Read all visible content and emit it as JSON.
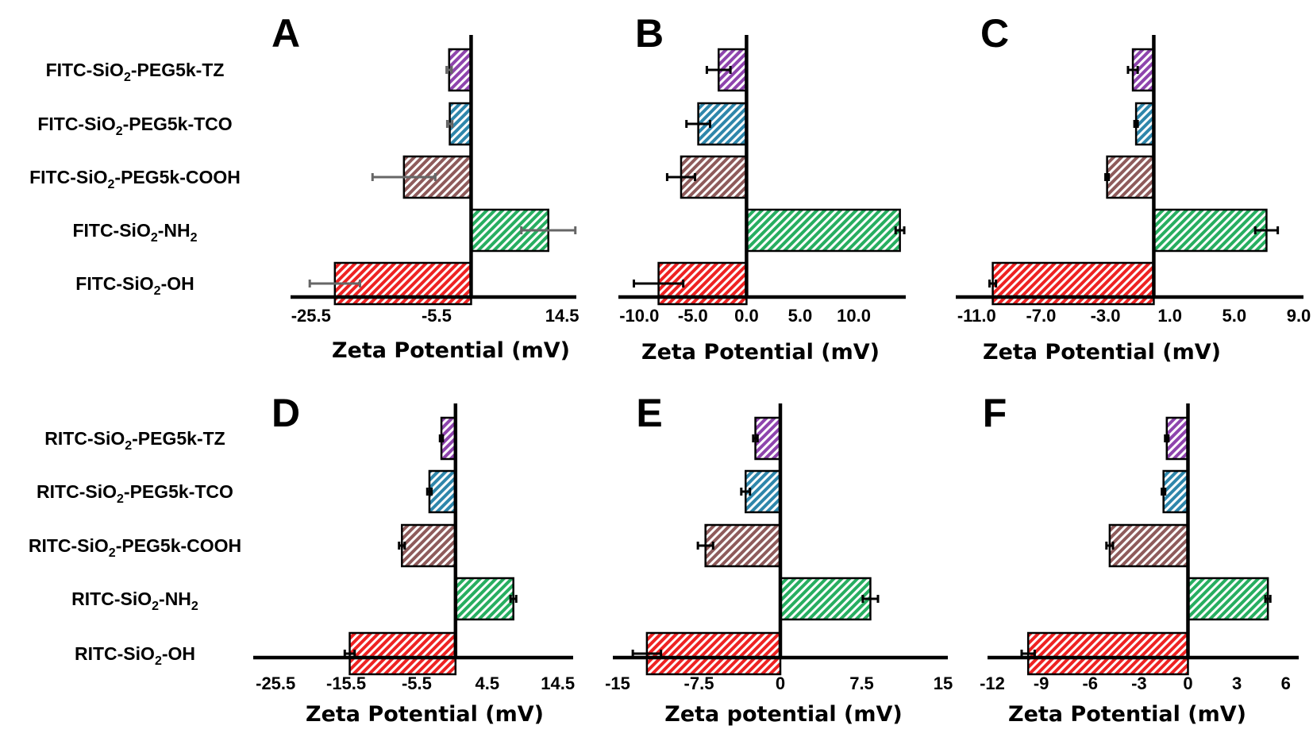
{
  "colors": {
    "TZ": "#8e44ad",
    "TCO": "#2e86ab",
    "COOH": "#8e5b5b",
    "NH2": "#27ae60",
    "OH": "#ee2222",
    "err_gray": "#666666",
    "err_black": "#000000"
  },
  "series_keys": [
    "TZ",
    "TCO",
    "COOH",
    "NH2",
    "OH"
  ],
  "label_groups": [
    {
      "name": "FITC",
      "labels": [
        {
          "pre": "FITC-SiO",
          "sub": "2",
          "post": "-PEG5k-TZ"
        },
        {
          "pre": "FITC-SiO",
          "sub": "2",
          "post": "-PEG5k-TCO"
        },
        {
          "pre": "FITC-SiO",
          "sub": "2",
          "post": "-PEG5k-COOH"
        },
        {
          "pre": "FITC-SiO",
          "sub": "2",
          "post": "-NH",
          "sub2": "2"
        },
        {
          "pre": "FITC-SiO",
          "sub": "2",
          "post": "-OH"
        }
      ]
    },
    {
      "name": "RITC",
      "labels": [
        {
          "pre": "RITC-SiO",
          "sub": "2",
          "post": "-PEG5k-TZ"
        },
        {
          "pre": "RITC-SiO",
          "sub": "2",
          "post": "-PEG5k-TCO"
        },
        {
          "pre": "RITC-SiO",
          "sub": "2",
          "post": "-PEG5k-COOH"
        },
        {
          "pre": "RITC-SiO",
          "sub": "2",
          "post": "-NH",
          "sub2": "2"
        },
        {
          "pre": "RITC-SiO",
          "sub": "2",
          "post": "-OH"
        }
      ]
    }
  ],
  "chart_data": [
    {
      "panel": "A",
      "type": "bar",
      "orientation": "horizontal",
      "xlabel": "Zeta Potential (mV)",
      "xlim": [
        -28,
        16
      ],
      "ticks": [
        -25.5,
        -5.5,
        14.5
      ],
      "tick_labels": [
        "-25.5",
        "-5.5",
        "14.5"
      ],
      "categories": [
        "FITC-SiO2-PEG5k-TZ",
        "FITC-SiO2-PEG5k-TCO",
        "FITC-SiO2-PEG5k-COOH",
        "FITC-SiO2-NH2",
        "FITC-SiO2-OH"
      ],
      "values": [
        -3.5,
        -3.4,
        -10.7,
        12.3,
        -21.7
      ],
      "errors": [
        0.4,
        0.4,
        5.0,
        4.3,
        4.0
      ],
      "error_color": "gray"
    },
    {
      "panel": "B",
      "type": "bar",
      "orientation": "horizontal",
      "xlabel": "Zeta Potential (mV)",
      "xlim": [
        -11.5,
        14.4
      ],
      "ticks": [
        -10,
        -5,
        0,
        5,
        10
      ],
      "tick_labels": [
        "-10.0",
        "-5.0",
        "0.0",
        "5.0",
        "10.0"
      ],
      "categories": [
        "FITC-SiO2-PEG5k-TZ",
        "FITC-SiO2-PEG5k-TCO",
        "FITC-SiO2-PEG5k-COOH",
        "FITC-SiO2-NH2",
        "FITC-SiO2-OH"
      ],
      "values": [
        -2.6,
        -4.5,
        -6.1,
        14.3,
        -8.2
      ],
      "errors": [
        1.1,
        1.1,
        1.3,
        0.4,
        2.3
      ],
      "error_color": "black"
    },
    {
      "panel": "C",
      "type": "bar",
      "orientation": "horizontal",
      "xlabel": "Zeta Potential (mV)",
      "xlim": [
        -12,
        9
      ],
      "ticks": [
        -11,
        -7,
        -3,
        1,
        5,
        9
      ],
      "tick_labels": [
        "-11.0",
        "-7.0",
        "-3.0",
        "1.0",
        "5.0",
        "9.0"
      ],
      "categories": [
        "FITC-SiO2-PEG5k-TZ",
        "FITC-SiO2-PEG5k-TCO",
        "FITC-SiO2-PEG5k-COOH",
        "FITC-SiO2-NH2",
        "FITC-SiO2-OH"
      ],
      "values": [
        -1.3,
        -1.1,
        -2.9,
        7.0,
        -10.0
      ],
      "errors": [
        0.3,
        0.1,
        0.1,
        0.7,
        0.2
      ],
      "error_color": "black"
    },
    {
      "panel": "D",
      "type": "bar",
      "orientation": "horizontal",
      "xlabel": "Zeta Potential (mV)",
      "xlim": [
        -28,
        16
      ],
      "ticks": [
        -25.5,
        -15.5,
        -5.5,
        4.5,
        14.5
      ],
      "tick_labels": [
        "-25.5",
        "-15.5",
        "-5.5",
        "4.5",
        "14.5"
      ],
      "categories": [
        "RITC-SiO2-PEG5k-TZ",
        "RITC-SiO2-PEG5k-TCO",
        "RITC-SiO2-PEG5k-COOH",
        "RITC-SiO2-NH2",
        "RITC-SiO2-OH"
      ],
      "values": [
        -2.0,
        -3.7,
        -7.6,
        8.2,
        -15.0
      ],
      "errors": [
        0.2,
        0.3,
        0.4,
        0.4,
        0.7
      ],
      "error_color": "black"
    },
    {
      "panel": "E",
      "type": "bar",
      "orientation": "horizontal",
      "xlabel": "Zeta potential (mV)",
      "xlim": [
        -15,
        15
      ],
      "ticks": [
        -15,
        -7.5,
        0,
        7.5,
        15
      ],
      "tick_labels": [
        "-15",
        "-7.5",
        "0",
        "7.5",
        "15"
      ],
      "categories": [
        "RITC-SiO2-PEG5k-TZ",
        "RITC-SiO2-PEG5k-TCO",
        "RITC-SiO2-PEG5k-COOH",
        "RITC-SiO2-NH2",
        "RITC-SiO2-OH"
      ],
      "values": [
        -2.3,
        -3.2,
        -6.9,
        8.3,
        -12.3
      ],
      "errors": [
        0.2,
        0.4,
        0.7,
        0.7,
        1.3
      ],
      "error_color": "black"
    },
    {
      "panel": "F",
      "type": "bar",
      "orientation": "horizontal",
      "xlabel": "Zeta Potential (mV)",
      "xlim": [
        -12,
        6.5
      ],
      "ticks": [
        -12,
        -9,
        -6,
        -3,
        0,
        3,
        6
      ],
      "tick_labels": [
        "-12",
        "-9",
        "-6",
        "-3",
        "0",
        "3",
        "6"
      ],
      "categories": [
        "RITC-SiO2-PEG5k-TZ",
        "RITC-SiO2-PEG5k-TCO",
        "RITC-SiO2-PEG5k-COOH",
        "RITC-SiO2-NH2",
        "RITC-SiO2-OH"
      ],
      "values": [
        -1.3,
        -1.5,
        -4.8,
        4.9,
        -9.8
      ],
      "errors": [
        0.1,
        0.1,
        0.2,
        0.15,
        0.4
      ],
      "error_color": "black"
    }
  ]
}
